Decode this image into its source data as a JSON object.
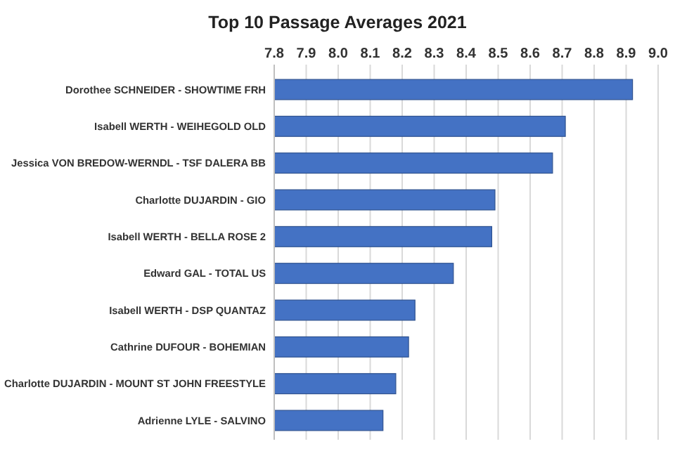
{
  "chart_data": {
    "type": "bar",
    "orientation": "horizontal",
    "title": "Top 10 Passage Averages 2021",
    "categories": [
      "Dorothee SCHNEIDER - SHOWTIME FRH",
      "Isabell WERTH - WEIHEGOLD OLD",
      "Jessica VON BREDOW-WERNDL - TSF DALERA BB",
      "Charlotte DUJARDIN - GIO",
      "Isabell WERTH - BELLA ROSE 2",
      "Edward GAL - TOTAL US",
      "Isabell WERTH - DSP QUANTAZ",
      "Cathrine DUFOUR - BOHEMIAN",
      "Charlotte DUJARDIN - MOUNT ST JOHN FREESTYLE",
      "Adrienne LYLE - SALVINO"
    ],
    "values": [
      8.92,
      8.71,
      8.67,
      8.49,
      8.48,
      8.36,
      8.24,
      8.22,
      8.18,
      8.14
    ],
    "color": "#4472c4",
    "xlim": [
      7.8,
      9.0
    ],
    "xticks": [
      {
        "value": 7.8,
        "label": "7.8"
      },
      {
        "value": 7.9,
        "label": "7.9"
      },
      {
        "value": 8.0,
        "label": "8.0"
      },
      {
        "value": 8.1,
        "label": "8.1"
      },
      {
        "value": 8.2,
        "label": "8.2"
      },
      {
        "value": 8.3,
        "label": "8.3"
      },
      {
        "value": 8.4,
        "label": "8.4"
      },
      {
        "value": 8.5,
        "label": "8.5"
      },
      {
        "value": 8.6,
        "label": "8.6"
      },
      {
        "value": 8.7,
        "label": "8.7"
      },
      {
        "value": 8.8,
        "label": "8.8"
      },
      {
        "value": 8.9,
        "label": "8.9"
      },
      {
        "value": 9.0,
        "label": "9.0"
      }
    ],
    "grid": "x"
  }
}
